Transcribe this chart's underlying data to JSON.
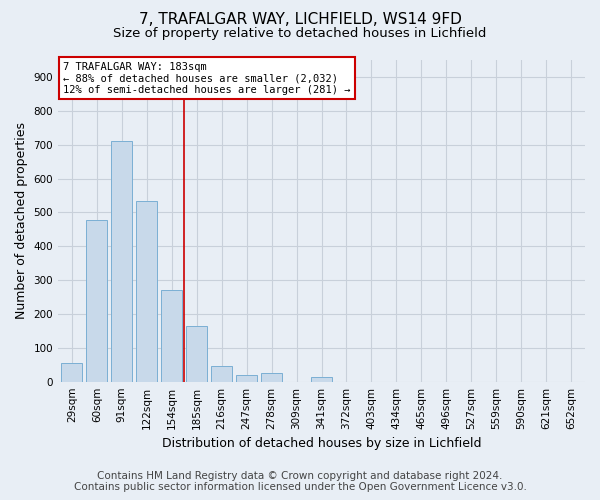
{
  "title1": "7, TRAFALGAR WAY, LICHFIELD, WS14 9FD",
  "title2": "Size of property relative to detached houses in Lichfield",
  "xlabel": "Distribution of detached houses by size in Lichfield",
  "ylabel": "Number of detached properties",
  "categories": [
    "29sqm",
    "60sqm",
    "91sqm",
    "122sqm",
    "154sqm",
    "185sqm",
    "216sqm",
    "247sqm",
    "278sqm",
    "309sqm",
    "341sqm",
    "372sqm",
    "403sqm",
    "434sqm",
    "465sqm",
    "496sqm",
    "527sqm",
    "559sqm",
    "590sqm",
    "621sqm",
    "652sqm"
  ],
  "values": [
    55,
    478,
    710,
    535,
    270,
    165,
    45,
    20,
    25,
    0,
    15,
    0,
    0,
    0,
    0,
    0,
    0,
    0,
    0,
    0,
    0
  ],
  "bar_color": "#c8d9ea",
  "bar_edge_color": "#7bafd4",
  "property_line_x": 4.5,
  "property_line_color": "#cc0000",
  "annotation_box_color": "#ffffff",
  "annotation_box_edge_color": "#cc0000",
  "annotation_line1": "7 TRAFALGAR WAY: 183sqm",
  "annotation_line2": "← 88% of detached houses are smaller (2,032)",
  "annotation_line3": "12% of semi-detached houses are larger (281) →",
  "ylim": [
    0,
    950
  ],
  "yticks": [
    0,
    100,
    200,
    300,
    400,
    500,
    600,
    700,
    800,
    900
  ],
  "footer1": "Contains HM Land Registry data © Crown copyright and database right 2024.",
  "footer2": "Contains public sector information licensed under the Open Government Licence v3.0.",
  "background_color": "#e8eef5",
  "plot_background_color": "#e8eef5",
  "grid_color": "#c8d0da",
  "title1_fontsize": 11,
  "title2_fontsize": 9.5,
  "axis_label_fontsize": 9,
  "tick_fontsize": 7.5,
  "footer_fontsize": 7.5
}
